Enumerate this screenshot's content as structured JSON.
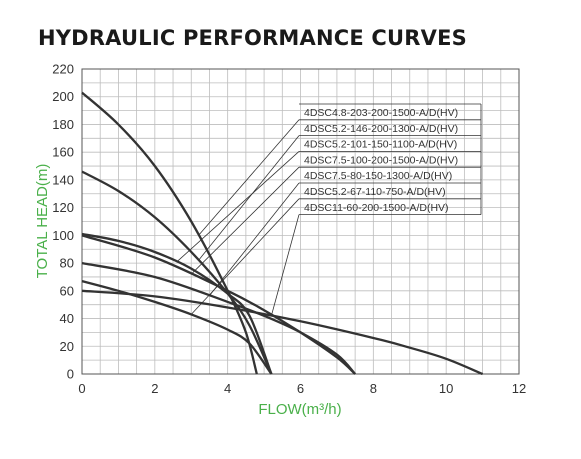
{
  "chart_data": {
    "type": "line",
    "title": "HYDRAULIC PERFORMANCE CURVES",
    "xlabel": "FLOW(m³/h)",
    "ylabel": "TOTAL HEAD(m)",
    "xlim": [
      0,
      12
    ],
    "ylim": [
      0,
      220
    ],
    "x_ticks": [
      0,
      2,
      4,
      6,
      8,
      10,
      12
    ],
    "y_ticks": [
      0,
      20,
      40,
      60,
      80,
      100,
      120,
      140,
      160,
      180,
      200,
      220
    ],
    "grid": true,
    "axis_label_color": "#4ab04a",
    "line_color": "#333333",
    "series": [
      {
        "name": "4DSC4.8-203-200-1500-A/D(HV)",
        "x": [
          0,
          1,
          2,
          3,
          4,
          4.5,
          4.8
        ],
        "y": [
          203,
          180,
          150,
          110,
          60,
          30,
          0
        ]
      },
      {
        "name": "4DSC5.2-146-200-1300-A/D(HV)",
        "x": [
          0,
          1,
          2,
          3,
          4,
          4.6,
          5.2
        ],
        "y": [
          146,
          132,
          113,
          88,
          58,
          35,
          0
        ]
      },
      {
        "name": "4DSC5.2-101-150-1100-A/D(HV)",
        "x": [
          0,
          1,
          2,
          3,
          4,
          4.6,
          5.2
        ],
        "y": [
          101,
          96,
          88,
          76,
          58,
          42,
          0
        ]
      },
      {
        "name": "4DSC7.5-100-200-1500-A/D(HV)",
        "x": [
          0,
          2,
          4,
          5,
          6,
          7,
          7.5
        ],
        "y": [
          100,
          84,
          60,
          46,
          30,
          12,
          0
        ]
      },
      {
        "name": "4DSC7.5-80-150-1300-A/D(HV)",
        "x": [
          0,
          2,
          4,
          5,
          6,
          7,
          7.5
        ],
        "y": [
          80,
          70,
          52,
          42,
          30,
          14,
          0
        ]
      },
      {
        "name": "4DSC5.2-67-110-750-A/D(HV)",
        "x": [
          0,
          1,
          2,
          3,
          4,
          4.6,
          5.2
        ],
        "y": [
          67,
          60,
          52,
          43,
          32,
          22,
          0
        ]
      },
      {
        "name": "4DSC11-60-200-1500-A/D(HV)",
        "x": [
          0,
          2,
          4,
          6,
          8,
          9,
          10,
          11
        ],
        "y": [
          60,
          56,
          48,
          38,
          26,
          19,
          11,
          0
        ]
      }
    ]
  }
}
